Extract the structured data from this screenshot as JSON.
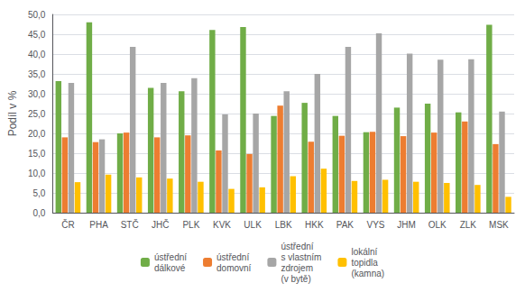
{
  "chart_data": {
    "type": "bar",
    "categories": [
      "ČR",
      "PHA",
      "STČ",
      "JHČ",
      "PLK",
      "KVK",
      "ULK",
      "LBK",
      "HKK",
      "PAK",
      "VYS",
      "JHM",
      "OLK",
      "ZLK",
      "MSK"
    ],
    "series": [
      {
        "name": "ústřední\ndálkové",
        "color": "#70AD47",
        "values": [
          33.2,
          48.0,
          20.0,
          31.5,
          30.6,
          46.1,
          46.8,
          24.4,
          27.7,
          24.4,
          20.3,
          26.5,
          27.5,
          25.3,
          47.4
        ]
      },
      {
        "name": "ústřední\ndomovní",
        "color": "#ED7D31",
        "values": [
          19.0,
          17.8,
          20.2,
          19.0,
          19.5,
          15.7,
          14.8,
          27.0,
          17.9,
          19.4,
          20.4,
          19.3,
          20.2,
          23.0,
          17.3
        ]
      },
      {
        "name": "ústřední\ns vlastním\nzdrojem\n(v bytě)",
        "color": "#A6A6A6",
        "values": [
          32.7,
          18.5,
          41.8,
          32.7,
          33.9,
          24.8,
          25.0,
          30.6,
          35.0,
          41.8,
          45.2,
          40.1,
          38.6,
          38.7,
          25.5
        ]
      },
      {
        "name": "lokální\ntopidla\n(kamna)",
        "color": "#FFC000",
        "values": [
          7.7,
          9.6,
          8.9,
          8.6,
          7.8,
          6.0,
          6.4,
          9.2,
          11.1,
          8.0,
          8.3,
          7.8,
          7.5,
          7.0,
          4.0
        ]
      }
    ],
    "ylabel": "Podíl v %",
    "ylim": [
      0,
      50
    ],
    "yticks": [
      {
        "value": 0,
        "label": "0,0"
      },
      {
        "value": 5,
        "label": "5,0"
      },
      {
        "value": 10,
        "label": "10,0"
      },
      {
        "value": 15,
        "label": "15,0"
      },
      {
        "value": 20,
        "label": "20,0"
      },
      {
        "value": 25,
        "label": "25,0"
      },
      {
        "value": 30,
        "label": "30,0"
      },
      {
        "value": 35,
        "label": "35,0"
      },
      {
        "value": 40,
        "label": "40,0"
      },
      {
        "value": 45,
        "label": "45,0"
      },
      {
        "value": 50,
        "label": "50,0"
      }
    ],
    "grid": true,
    "legend": "bottom"
  }
}
